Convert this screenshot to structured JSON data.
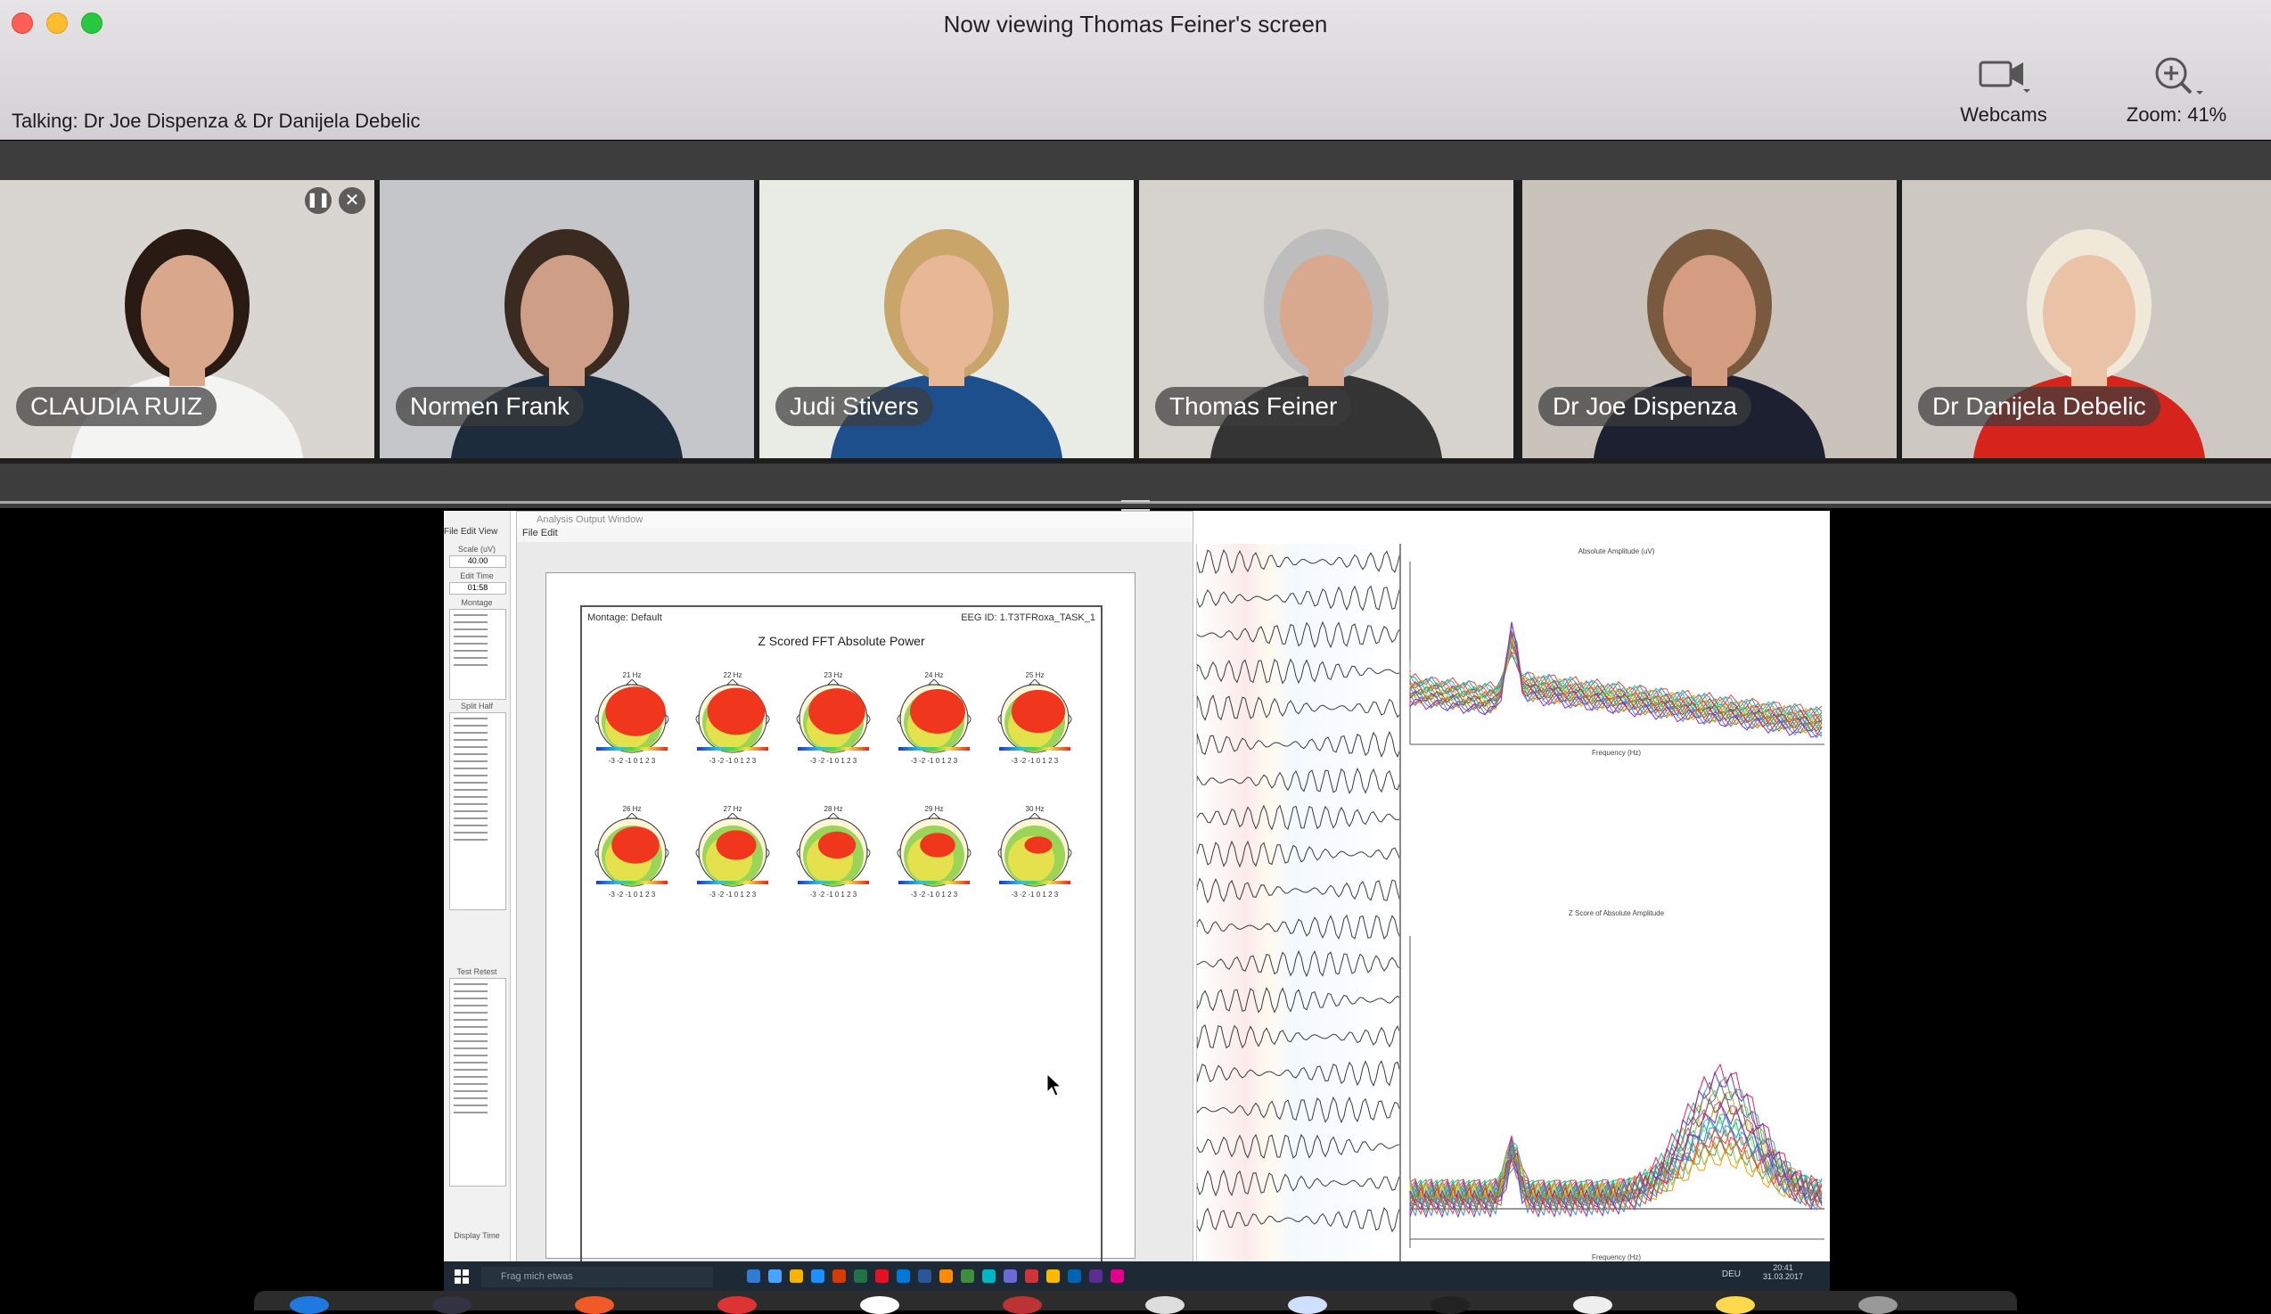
{
  "window": {
    "title": "Now viewing Thomas Feiner's screen",
    "talking": "Talking: Dr Joe Dispenza & Dr Danijela Debelic"
  },
  "toolbar": {
    "webcams_label": "Webcams",
    "zoom_label": "Zoom: 41%"
  },
  "participants": [
    {
      "name": "CLAUDIA RUIZ",
      "bg": "#d9d6d2",
      "skin": "#d9a88c",
      "hair": "#2a1a14",
      "shirt": "#f4f4f2",
      "active": false
    },
    {
      "name": "Normen Frank",
      "bg": "#c5c6c9",
      "skin": "#cf9e86",
      "hair": "#3a2a20",
      "shirt": "#1c2c3c",
      "active": false
    },
    {
      "name": "Judi Stivers",
      "bg": "#e9ece4",
      "skin": "#e8b796",
      "hair": "#c9a56a",
      "shirt": "#1e4f8d",
      "active": false
    },
    {
      "name": "Thomas Feiner",
      "bg": "#d6d3cf",
      "skin": "#d8a98e",
      "hair": "#bdbdbd",
      "shirt": "#343434",
      "active": false
    },
    {
      "name": "Dr Joe Dispenza",
      "bg": "#c9c3bc",
      "skin": "#d49c80",
      "hair": "#7a5a3e",
      "shirt": "#1d2030",
      "active": true
    },
    {
      "name": "Dr Danijela Debelic",
      "bg": "#cdc8c2",
      "skin": "#eac2a6",
      "hair": "#f0e8d8",
      "shirt": "#d6241c",
      "active": false
    }
  ],
  "shared": {
    "left_menu": "File  Edit  View",
    "left_labels": {
      "scale": "Scale (uV)",
      "scale_value": "40.00",
      "edit_time": "Edit Time",
      "edit_time_value": "01:58",
      "montage": "Montage",
      "split_half": "Split Half",
      "test_retest": "Test Retest",
      "display_time": "Display Time"
    },
    "output_window_title": "Analysis Output Window",
    "output_menu": "File  Edit",
    "doc": {
      "montage": "Montage:   Default",
      "eeg_id": "EEG ID:   1.T3TFRoxa_TASK_1",
      "title": "Z Scored FFT Absolute Power",
      "maps": [
        {
          "hz": "21 Hz"
        },
        {
          "hz": "22 Hz"
        },
        {
          "hz": "23 Hz"
        },
        {
          "hz": "24 Hz"
        },
        {
          "hz": "25 Hz"
        },
        {
          "hz": "26 Hz"
        },
        {
          "hz": "27 Hz"
        },
        {
          "hz": "28 Hz"
        },
        {
          "hz": "29 Hz"
        },
        {
          "hz": "30 Hz"
        }
      ],
      "scale_ticks": "-3 -2 -1 0 1 2 3"
    },
    "spectra": {
      "top_title": "Absolute Amplitude (uV)",
      "bottom_title": "Z Score of Absolute Amplitude",
      "xlabel": "Frequency (Hz)"
    },
    "taskbar": {
      "search_placeholder": "Frag mich etwas",
      "lang": "DEU",
      "time": "20:41",
      "date": "31.03.2017"
    }
  },
  "colors": {
    "active_border": "#ffffff",
    "close_red": "#fe5f57",
    "minimize_yellow": "#febc2e",
    "zoom_green": "#28c840"
  }
}
